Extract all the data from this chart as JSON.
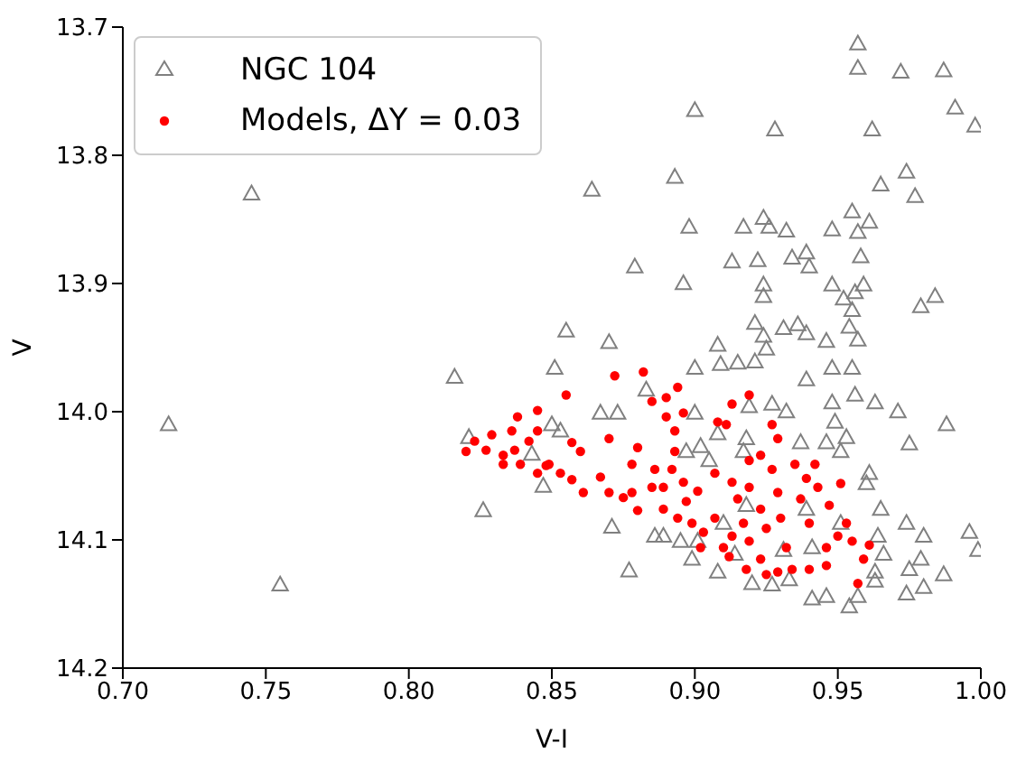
{
  "chart_data": {
    "type": "scatter",
    "xlabel": "V-I",
    "ylabel": "V",
    "xlim": [
      0.7,
      1.0
    ],
    "ylim": [
      14.2,
      13.7
    ],
    "xticks": [
      {
        "value": 0.7,
        "label": "0.70"
      },
      {
        "value": 0.75,
        "label": "0.75"
      },
      {
        "value": 0.8,
        "label": "0.80"
      },
      {
        "value": 0.85,
        "label": "0.85"
      },
      {
        "value": 0.9,
        "label": "0.90"
      },
      {
        "value": 0.95,
        "label": "0.95"
      },
      {
        "value": 1.0,
        "label": "1.00"
      }
    ],
    "yticks": [
      {
        "value": 13.7,
        "label": "13.7"
      },
      {
        "value": 13.8,
        "label": "13.8"
      },
      {
        "value": 13.9,
        "label": "13.9"
      },
      {
        "value": 14.0,
        "label": "14.0"
      },
      {
        "value": 14.1,
        "label": "14.1"
      },
      {
        "value": 14.2,
        "label": "14.2"
      }
    ],
    "grid": false,
    "legend": "top left",
    "series": [
      {
        "name": "NGC 104",
        "color": "#808080",
        "marker": "triangle",
        "x": [
          0.745,
          0.9,
          0.928,
          0.957,
          0.957,
          0.972,
          0.987,
          0.991,
          0.998,
          0.962,
          0.974,
          0.965,
          0.977,
          0.864,
          0.893,
          0.898,
          0.917,
          0.924,
          0.926,
          0.932,
          0.948,
          0.955,
          0.961,
          0.957,
          0.958,
          0.879,
          0.896,
          0.913,
          0.922,
          0.934,
          0.939,
          0.94,
          0.924,
          0.924,
          0.948,
          0.952,
          0.956,
          0.959,
          0.955,
          0.979,
          0.984,
          0.855,
          0.87,
          0.908,
          0.921,
          0.924,
          0.931,
          0.936,
          0.939,
          0.946,
          0.954,
          0.957,
          0.925,
          0.716,
          0.755,
          0.816,
          0.851,
          0.821,
          0.826,
          0.85,
          0.843,
          0.847,
          0.9,
          0.909,
          0.915,
          0.921,
          0.939,
          0.948,
          0.955,
          0.956,
          0.948,
          0.949,
          0.963,
          0.971,
          0.988,
          0.975,
          0.927,
          0.932,
          0.919,
          0.9,
          0.867,
          0.873,
          0.883,
          0.853,
          0.908,
          0.918,
          0.937,
          0.946,
          0.953,
          0.951,
          0.961,
          0.96,
          0.965,
          0.974,
          0.98,
          0.996,
          0.999,
          0.979,
          0.975,
          0.987,
          0.98,
          0.974,
          0.877,
          0.871,
          0.886,
          0.899,
          0.908,
          0.92,
          0.927,
          0.933,
          0.941,
          0.946,
          0.954,
          0.957,
          0.963,
          0.966,
          0.964,
          0.897,
          0.902,
          0.905,
          0.917,
          0.889,
          0.895,
          0.901,
          0.914,
          0.931,
          0.941,
          0.951,
          0.939,
          0.918,
          0.91,
          0.963
        ],
        "values": [
          13.83,
          13.765,
          13.78,
          13.713,
          13.732,
          13.735,
          13.734,
          13.763,
          13.777,
          13.78,
          13.813,
          13.823,
          13.832,
          13.827,
          13.817,
          13.856,
          13.856,
          13.849,
          13.856,
          13.859,
          13.858,
          13.844,
          13.852,
          13.86,
          13.879,
          13.887,
          13.9,
          13.883,
          13.882,
          13.88,
          13.876,
          13.887,
          13.901,
          13.91,
          13.901,
          13.912,
          13.907,
          13.901,
          13.921,
          13.918,
          13.91,
          13.937,
          13.946,
          13.948,
          13.931,
          13.941,
          13.935,
          13.932,
          13.939,
          13.945,
          13.934,
          13.944,
          13.951,
          14.01,
          14.135,
          13.973,
          13.966,
          14.02,
          14.077,
          14.01,
          14.033,
          14.058,
          13.966,
          13.963,
          13.962,
          13.961,
          13.975,
          13.966,
          13.966,
          13.987,
          13.993,
          14.008,
          13.993,
          14.0,
          14.01,
          14.025,
          13.994,
          14.0,
          13.996,
          14.001,
          14.001,
          14.001,
          13.983,
          14.015,
          14.017,
          14.021,
          14.024,
          14.024,
          14.02,
          14.031,
          14.048,
          14.056,
          14.076,
          14.087,
          14.097,
          14.094,
          14.108,
          14.115,
          14.123,
          14.127,
          14.137,
          14.142,
          14.124,
          14.09,
          14.097,
          14.115,
          14.125,
          14.134,
          14.135,
          14.131,
          14.146,
          14.144,
          14.152,
          14.144,
          14.132,
          14.111,
          14.097,
          14.031,
          14.027,
          14.038,
          14.031,
          14.097,
          14.101,
          14.101,
          14.111,
          14.108,
          14.106,
          14.087,
          14.076,
          14.073,
          14.087,
          14.125
        ]
      },
      {
        "name": "Models, ΔY = 0.03",
        "color": "#ff0000",
        "marker": "circle",
        "x": [
          0.82,
          0.823,
          0.827,
          0.829,
          0.833,
          0.836,
          0.838,
          0.845,
          0.845,
          0.842,
          0.839,
          0.837,
          0.845,
          0.849,
          0.833,
          0.872,
          0.882,
          0.855,
          0.848,
          0.853,
          0.857,
          0.861,
          0.857,
          0.86,
          0.867,
          0.87,
          0.875,
          0.88,
          0.87,
          0.878,
          0.88,
          0.886,
          0.885,
          0.89,
          0.894,
          0.896,
          0.89,
          0.893,
          0.893,
          0.892,
          0.889,
          0.889,
          0.894,
          0.897,
          0.896,
          0.899,
          0.903,
          0.901,
          0.907,
          0.908,
          0.911,
          0.913,
          0.919,
          0.927,
          0.929,
          0.91,
          0.913,
          0.917,
          0.915,
          0.913,
          0.919,
          0.923,
          0.919,
          0.925,
          0.923,
          0.929,
          0.934,
          0.932,
          0.93,
          0.929,
          0.927,
          0.935,
          0.939,
          0.937,
          0.94,
          0.94,
          0.946,
          0.943,
          0.942,
          0.951,
          0.947,
          0.95,
          0.955,
          0.959,
          0.957,
          0.961,
          0.953,
          0.923,
          0.919,
          0.907,
          0.902,
          0.912,
          0.918,
          0.925,
          0.946,
          0.878,
          0.885
        ],
        "values": [
          14.031,
          14.023,
          14.03,
          14.018,
          14.034,
          14.015,
          14.004,
          13.999,
          14.015,
          14.023,
          14.041,
          14.03,
          14.048,
          14.041,
          14.041,
          13.972,
          13.969,
          13.987,
          14.042,
          14.048,
          14.053,
          14.063,
          14.024,
          14.031,
          14.051,
          14.063,
          14.067,
          14.077,
          14.021,
          14.041,
          14.028,
          14.045,
          13.992,
          13.989,
          13.981,
          14.001,
          14.004,
          14.015,
          14.031,
          14.045,
          14.059,
          14.076,
          14.083,
          14.07,
          14.055,
          14.087,
          14.094,
          14.062,
          14.048,
          14.008,
          14.01,
          13.994,
          13.987,
          14.01,
          14.021,
          14.106,
          14.097,
          14.087,
          14.068,
          14.055,
          14.059,
          14.076,
          14.101,
          14.091,
          14.115,
          14.125,
          14.123,
          14.106,
          14.083,
          14.063,
          14.045,
          14.041,
          14.052,
          14.068,
          14.087,
          14.123,
          14.12,
          14.059,
          14.041,
          14.056,
          14.073,
          14.097,
          14.101,
          14.115,
          14.134,
          14.104,
          14.087,
          14.034,
          14.038,
          14.083,
          14.106,
          14.113,
          14.123,
          14.127,
          14.106,
          14.063,
          14.059
        ]
      }
    ]
  }
}
